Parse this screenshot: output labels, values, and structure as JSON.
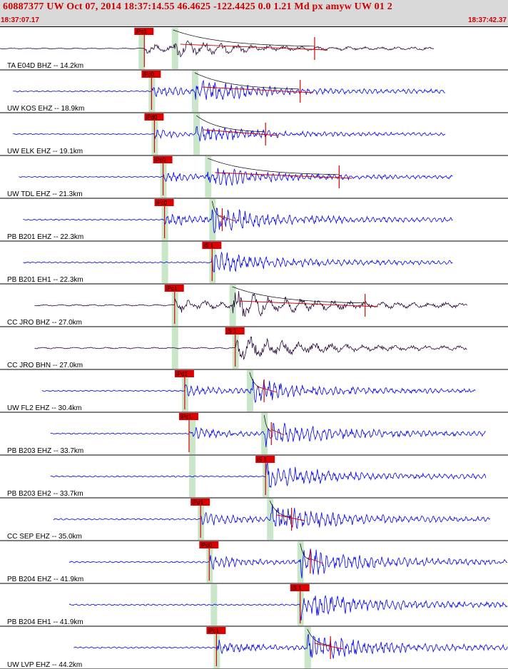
{
  "header": {
    "title": "60887377 UW Oct 07, 2014 18:37:14.55   46.4625 -122.4425  0.0 1.21 Md px amyw UW 01   2",
    "time_start": "18:37:07.17",
    "time_end": "18:37:42.37"
  },
  "colors": {
    "header_text": "#cc0000",
    "trace_blue": "#0000ee",
    "trace_dark": "#2a0a3c",
    "pick_red": "#dd0000",
    "window_green": "#c9e6c9",
    "coda_curve": "#000000",
    "coda_fit": "#cc0000"
  },
  "chart_data": {
    "type": "line",
    "time_range": [
      "18:37:07.17",
      "18:37:42.37"
    ],
    "duration_s": 35.2,
    "traces": [
      {
        "label": "TA E04D BHZ -- 14.2km",
        "color": "dark",
        "start_s": 0.0,
        "end_s": 30.1,
        "pick_label": "iPc1",
        "pick_s": 10.0,
        "s_s": 12.0,
        "s_label": "",
        "windows": [
          9.8,
          12.1
        ],
        "coda_end_s": 21.8,
        "amp": 0.35
      },
      {
        "label": "UW KOS EHZ -- 18.9km",
        "color": "blue",
        "start_s": 0.9,
        "end_s": 30.9,
        "pick_label": "iPc0",
        "pick_s": 10.5,
        "s_s": 13.5,
        "s_label": "",
        "windows": [
          10.5,
          13.5
        ],
        "coda_end_s": 20.8,
        "amp": 0.45
      },
      {
        "label": "UW ELK EHZ -- 19.1km",
        "color": "blue",
        "start_s": 0.9,
        "end_s": 30.9,
        "pick_label": "iPd0",
        "pick_s": 10.7,
        "s_s": 13.6,
        "s_label": "",
        "windows": [
          10.7,
          13.6
        ],
        "coda_end_s": 18.4,
        "amp": 0.35
      },
      {
        "label": "UW TDL EHZ -- 21.3km",
        "color": "blue",
        "start_s": 1.3,
        "end_s": 31.4,
        "pick_label": "iPc0",
        "pick_s": 11.3,
        "s_s": 14.4,
        "s_label": "",
        "windows": [
          11.3,
          14.4
        ],
        "coda_end_s": 23.5,
        "amp": 0.4
      },
      {
        "label": "PB B201 EHZ -- 22.3km",
        "color": "blue",
        "start_s": 1.6,
        "end_s": 31.4,
        "pick_label": "iPc0",
        "pick_s": 11.4,
        "s_s": 14.7,
        "s_label": "",
        "windows": [
          11.4,
          14.7
        ],
        "coda_end_s": 15.4,
        "amp": 0.5
      },
      {
        "label": "PB B201 EH1 -- 22.3km",
        "color": "blue",
        "start_s": 1.6,
        "end_s": 31.4,
        "pick_label": "iS 1",
        "pick_s": 14.7,
        "s_s": 14.7,
        "s_label": "",
        "windows": [
          11.4,
          14.7
        ],
        "coda_end_s": 0,
        "amp": 0.45
      },
      {
        "label": "CC JRO BHZ -- 27.0km",
        "color": "dark",
        "start_s": 2.4,
        "end_s": 32.4,
        "pick_label": "iPc1",
        "pick_s": 12.1,
        "s_s": 16.1,
        "s_label": "",
        "windows": [
          12.1,
          16.1
        ],
        "coda_end_s": 25.3,
        "amp": 0.55
      },
      {
        "label": "CC JRO BHN -- 27.0km",
        "color": "dark",
        "start_s": 2.4,
        "end_s": 32.4,
        "pick_label": "iS 1",
        "pick_s": 16.3,
        "s_s": 16.3,
        "s_label": "",
        "windows": [
          12.1,
          16.3
        ],
        "coda_end_s": 0,
        "amp": 0.5
      },
      {
        "label": "UW FL2 EHZ -- 30.4km",
        "color": "blue",
        "start_s": 2.9,
        "end_s": 33.0,
        "pick_label": "iPd1",
        "pick_s": 12.8,
        "s_s": 17.3,
        "s_label": "",
        "windows": [
          12.8,
          17.3
        ],
        "coda_end_s": 18.3,
        "amp": 0.45
      },
      {
        "label": "PB B203 EHZ -- 33.7km",
        "color": "blue",
        "start_s": 3.5,
        "end_s": 33.7,
        "pick_label": "iPc1",
        "pick_s": 13.1,
        "s_s": 18.3,
        "s_label": "",
        "windows": [
          13.3,
          18.3
        ],
        "coda_end_s": 18.8,
        "amp": 0.5
      },
      {
        "label": "PB B203 EH2 -- 33.7km",
        "color": "blue",
        "start_s": 3.5,
        "end_s": 33.7,
        "pick_label": "iS 1",
        "pick_s": 18.4,
        "s_s": 18.4,
        "s_label": "",
        "windows": [
          13.3,
          18.4
        ],
        "coda_end_s": 0,
        "amp": 0.5
      },
      {
        "label": "CC SEP EHZ -- 35.0km",
        "color": "blue",
        "start_s": 3.7,
        "end_s": 34.0,
        "pick_label": "iPd1",
        "pick_s": 13.9,
        "s_s": 18.7,
        "s_label": "",
        "windows": [
          13.9,
          18.7
        ],
        "coda_end_s": 20.2,
        "amp": 0.55
      },
      {
        "label": "PB B204 EHZ -- 41.9km",
        "color": "blue",
        "start_s": 4.8,
        "end_s": 35.2,
        "pick_label": "iPd0",
        "pick_s": 14.5,
        "s_s": 20.8,
        "s_label": "",
        "windows": [
          14.5,
          20.8
        ],
        "coda_end_s": 21.5,
        "amp": 0.55
      },
      {
        "label": "PB B204 EH1 -- 41.9km",
        "color": "blue",
        "start_s": 4.8,
        "end_s": 35.2,
        "pick_label": "iS 1",
        "pick_s": 20.8,
        "s_s": 20.8,
        "s_label": "",
        "windows": [
          14.8,
          20.8
        ],
        "coda_end_s": 0,
        "amp": 0.55
      },
      {
        "label": "UW LVP EHZ -- 44.2km",
        "color": "blue",
        "start_s": 5.1,
        "end_s": 35.2,
        "pick_label": "iPc1",
        "pick_s": 15.0,
        "s_s": 21.3,
        "s_label": "",
        "windows": [
          15.0,
          21.3
        ],
        "coda_end_s": 22.9,
        "amp": 0.55
      }
    ]
  }
}
